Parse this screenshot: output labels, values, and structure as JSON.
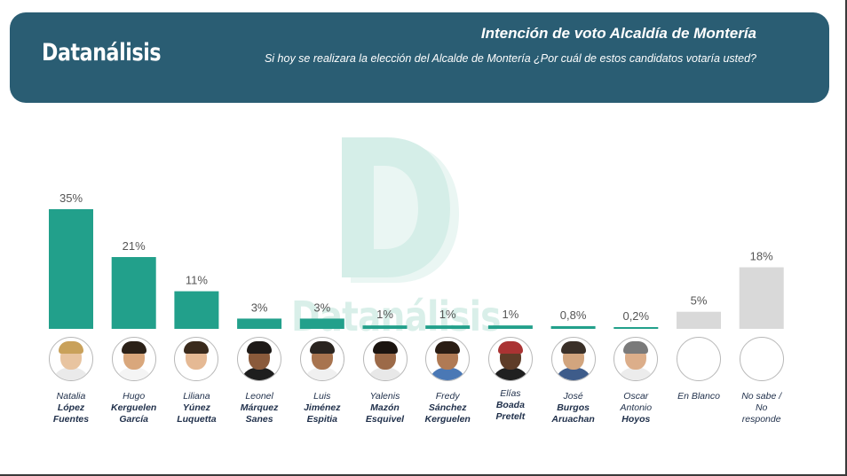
{
  "header": {
    "brand": "Datanálisis",
    "title": "Intención de voto Alcaldía de Montería",
    "subtitle": "Si hoy se realizara la elección del Alcalde de Montería ¿Por cuál de estos candidatos votaría usted?"
  },
  "watermark_text": "Datanálisis",
  "colors": {
    "header_bg": "#2a5d73",
    "bar_candidate": "#22a08b",
    "bar_other": "#d9d9d9"
  },
  "chart_data": {
    "type": "bar",
    "title": "Intención de voto Alcaldía de Montería",
    "categories": [
      "Natalia López Fuentes",
      "Hugo Kerguelen García",
      "Liliana Yúnez Luquetta",
      "Leonel Márquez Sanes",
      "Luis Jiménez Espitia",
      "Yalenis Mazón Esquivel",
      "Fredy Sánchez Kerguelen",
      "Elías Boada Pretelt",
      "José Burgos Aruachan",
      "Oscar Antonio Hoyos",
      "En Blanco",
      "No sabe / No responde"
    ],
    "values": [
      35,
      21,
      11,
      3,
      3,
      1,
      1,
      1,
      0.8,
      0.2,
      5,
      18
    ],
    "data_labels": [
      "35%",
      "21%",
      "11%",
      "3%",
      "3%",
      "1%",
      "1%",
      "1%",
      "0,8%",
      "0,2%",
      "5%",
      "18%"
    ],
    "ylim": [
      0,
      35
    ],
    "grid": false,
    "legend": "none"
  },
  "candidates": [
    {
      "first": "Natalia",
      "last1": "López",
      "last2": "Fuentes",
      "photo": true
    },
    {
      "first": "Hugo",
      "last1": "Kerguelen",
      "last2": "García",
      "photo": true
    },
    {
      "first": "Liliana",
      "last1": "Yúnez",
      "last2": "Luquetta",
      "photo": true
    },
    {
      "first": "Leonel",
      "last1": "Márquez",
      "last2": "Sanes",
      "photo": true
    },
    {
      "first": "Luis",
      "last1": "Jiménez",
      "last2": "Espitia",
      "photo": true
    },
    {
      "first": "Yalenis",
      "last1": "Mazón",
      "last2": "Esquivel",
      "photo": true
    },
    {
      "first": "Fredy",
      "last1": "Sánchez",
      "last2": "Kerguelen",
      "photo": true
    },
    {
      "first": "Elías",
      "last1": "Boada",
      "last2": "Pretelt",
      "photo": true
    },
    {
      "first": "José",
      "last1": "Burgos",
      "last2": "Aruachan",
      "photo": true
    },
    {
      "first": "Oscar",
      "last1": "Antonio",
      "last2": "Hoyos",
      "photo": true
    },
    {
      "first": "En Blanco",
      "last1": "",
      "last2": "",
      "photo": false
    },
    {
      "first": "No sabe /",
      "last1": "No",
      "last2": "responde",
      "photo": false,
      "plain": true
    }
  ]
}
